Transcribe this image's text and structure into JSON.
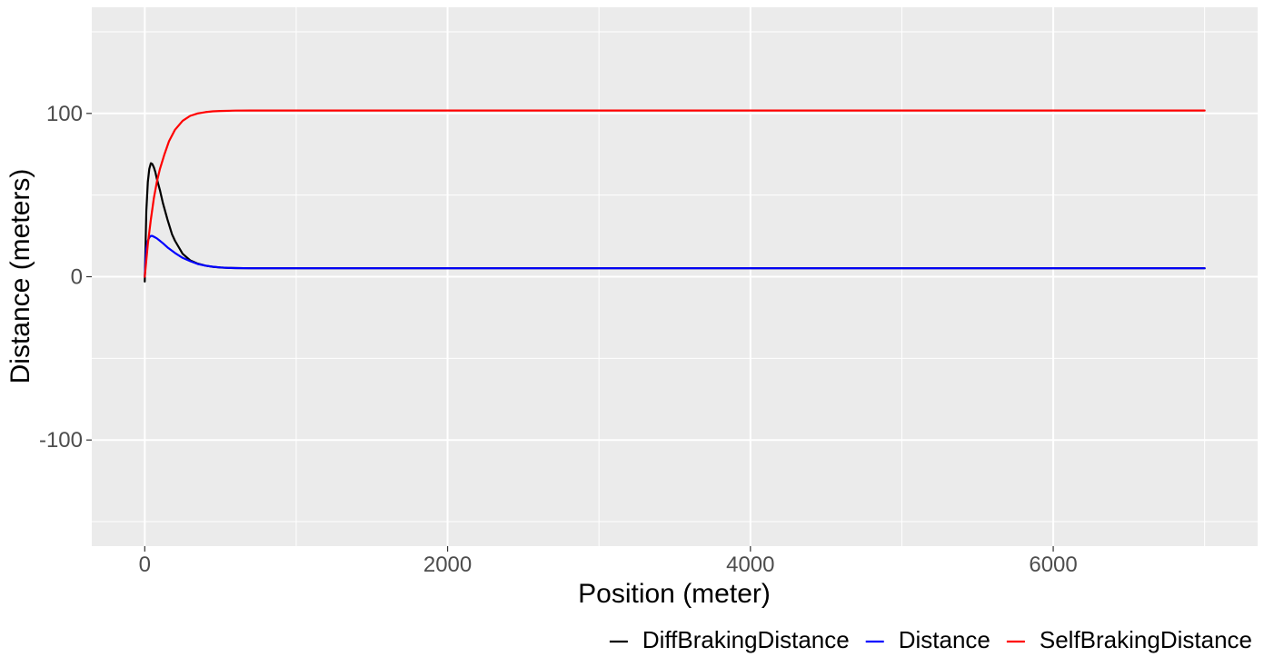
{
  "chart_data": {
    "type": "line",
    "xlabel": "Position (meter)",
    "ylabel": "Distance (meters)",
    "xlim": [
      -350,
      7350
    ],
    "ylim": [
      -165,
      165
    ],
    "x_ticks": [
      0,
      2000,
      4000,
      6000
    ],
    "x_tick_labels": [
      "0",
      "2000",
      "4000",
      "6000"
    ],
    "y_ticks": [
      -100,
      0,
      100
    ],
    "y_tick_labels": [
      "-100",
      "0",
      "100"
    ],
    "x_minor_grid": [
      1000,
      3000,
      5000,
      7000
    ],
    "y_minor_grid": [
      -150,
      -50,
      50,
      150
    ],
    "grid": true,
    "legend_position": "bottom-right",
    "series": [
      {
        "name": "DiffBrakingDistance",
        "color": "#000000",
        "x": [
          0,
          5,
          10,
          20,
          30,
          40,
          50,
          60,
          70,
          80,
          100,
          120,
          150,
          180,
          200,
          250,
          300,
          350,
          400,
          450,
          500,
          550,
          600,
          700,
          800,
          1000,
          2000,
          3000,
          4000,
          5000,
          6000,
          7000
        ],
        "y": [
          -3,
          20,
          40,
          58,
          66,
          69.5,
          69,
          67,
          64,
          60,
          53,
          45,
          35,
          26,
          22,
          14,
          10,
          8,
          6.8,
          6,
          5.6,
          5.4,
          5.3,
          5.2,
          5.2,
          5.2,
          5.2,
          5.2,
          5.2,
          5.2,
          5.2,
          5.2
        ]
      },
      {
        "name": "Distance",
        "color": "#0000ff",
        "x": [
          0,
          5,
          10,
          20,
          30,
          40,
          50,
          60,
          70,
          80,
          100,
          120,
          150,
          200,
          250,
          300,
          350,
          400,
          450,
          500,
          550,
          600,
          700,
          800,
          1000,
          2000,
          3000,
          4000,
          5000,
          6000,
          7000
        ],
        "y": [
          0,
          10,
          17,
          22,
          24,
          25,
          25,
          24.5,
          24,
          23.5,
          22,
          20.5,
          18,
          14.5,
          11.5,
          9.5,
          7.8,
          6.8,
          6.1,
          5.7,
          5.4,
          5.3,
          5.2,
          5.2,
          5.2,
          5.2,
          5.2,
          5.2,
          5.2,
          5.2,
          5.2
        ]
      },
      {
        "name": "SelfBrakingDistance",
        "color": "#ff0000",
        "x": [
          0,
          10,
          20,
          40,
          60,
          80,
          100,
          130,
          160,
          200,
          250,
          300,
          350,
          400,
          450,
          500,
          600,
          700,
          800,
          1000,
          2000,
          3000,
          4000,
          5000,
          6000,
          7000
        ],
        "y": [
          0,
          10,
          20,
          35,
          48,
          58,
          66,
          75,
          83,
          90,
          95.5,
          98.5,
          100,
          100.8,
          101.3,
          101.5,
          101.7,
          101.8,
          101.8,
          101.8,
          101.8,
          101.8,
          101.8,
          101.8,
          101.8,
          101.8
        ]
      }
    ]
  },
  "style": {
    "panel_background": "#ebebeb",
    "grid_color": "#ffffff",
    "tick_color": "#333333"
  }
}
